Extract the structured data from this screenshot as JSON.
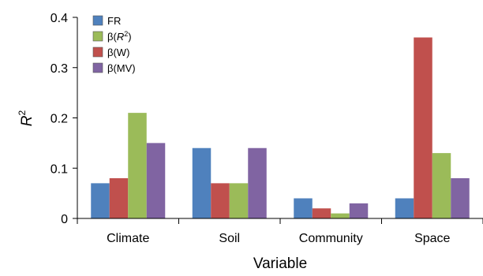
{
  "chart_data": {
    "type": "bar",
    "title": "",
    "xlabel": "Variable",
    "ylabel_base": "R",
    "ylabel_sup": "2",
    "categories": [
      "Climate",
      "Soil",
      "Community",
      "Space"
    ],
    "ylim": [
      0,
      0.4
    ],
    "yticks": [
      "0",
      "0.1",
      "0.2",
      "0.3",
      "0.4"
    ],
    "grid": false,
    "legend_position": "top-left",
    "series": [
      {
        "name": "FR",
        "legend_parts": [
          "FR"
        ],
        "color": "#4f81bd",
        "values": [
          0.07,
          0.14,
          0.04,
          0.04
        ]
      },
      {
        "name": "β(R²)",
        "legend_parts": [
          "β(",
          "R",
          "2",
          ")"
        ],
        "color": "#9bbb59",
        "values": [
          0.21,
          0.07,
          0.01,
          0.13
        ]
      },
      {
        "name": "β(W)",
        "legend_parts": [
          "β(W)"
        ],
        "color": "#c0504d",
        "values": [
          0.08,
          0.07,
          0.02,
          0.36
        ]
      },
      {
        "name": "β(MV)",
        "legend_parts": [
          "β(MV)"
        ],
        "color": "#8064a2",
        "values": [
          0.15,
          0.14,
          0.03,
          0.08
        ]
      }
    ],
    "bar_order": [
      0,
      2,
      1,
      3
    ]
  }
}
